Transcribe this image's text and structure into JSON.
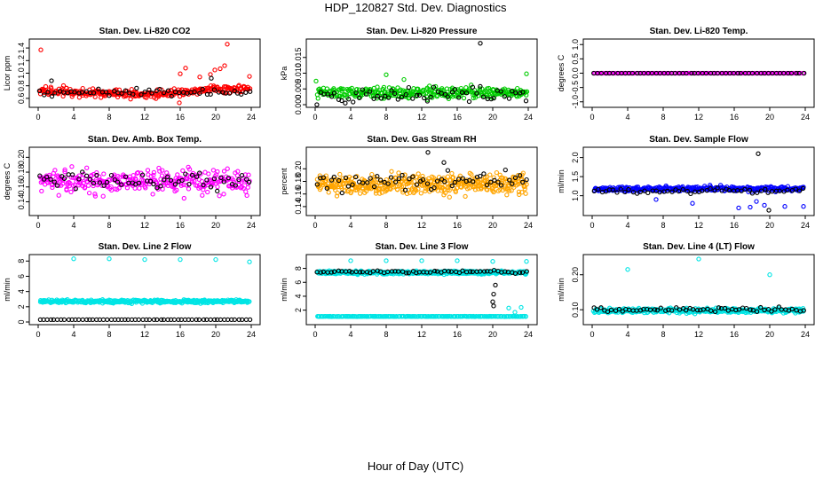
{
  "page": {
    "title": "HDP_120827  Std. Dev. Diagnostics",
    "xlabel": "Hour of Day (UTC)"
  },
  "colors": {
    "black": "#000000",
    "red": "#ff0000",
    "green": "#00cc00",
    "magenta": "#ff00ff",
    "orange": "#ffa500",
    "blue": "#0000ff",
    "cyan": "#00e5e5"
  },
  "chart_data": [
    {
      "id": "co2",
      "type": "scatter",
      "title": "Stan. Dev. Li-820 CO2",
      "ylabel": "Licor ppm",
      "xlim": [
        0,
        24
      ],
      "xticks": [
        "0",
        "4",
        "8",
        "12",
        "16",
        "20",
        "24"
      ],
      "ylim": [
        0.5,
        1.5
      ],
      "yticks": [
        0.6,
        0.8,
        1.0,
        1.2,
        1.4
      ],
      "ytick_labels": [
        "0.6",
        "0.8",
        "1.0",
        "1.2",
        "1.4"
      ],
      "series": [
        {
          "name": "main",
          "color": "#ff0000",
          "n": 300,
          "center": 0.68,
          "spread": 0.07,
          "trend": [
            [
              0,
              0.72
            ],
            [
              6,
              0.69
            ],
            [
              12,
              0.66
            ],
            [
              16,
              0.7
            ],
            [
              20,
              0.76
            ],
            [
              24,
              0.74
            ]
          ],
          "outliers": [
            [
              0.3,
              1.37
            ],
            [
              21.3,
              1.46
            ],
            [
              21,
              1.12
            ],
            [
              20.5,
              1.07
            ],
            [
              16.6,
              1.08
            ],
            [
              19.4,
              0.98
            ],
            [
              18.2,
              0.94
            ],
            [
              23.8,
              0.95
            ],
            [
              16,
              0.99
            ],
            [
              15.9,
              0.53
            ],
            [
              19.9,
              1.05
            ]
          ]
        },
        {
          "name": "ref",
          "color": "#000000",
          "n": 55,
          "center": 0.7,
          "spread": 0.06,
          "outliers": [
            [
              1.5,
              0.88
            ],
            [
              19.5,
              0.92
            ]
          ]
        }
      ]
    },
    {
      "id": "pressure",
      "type": "scatter",
      "title": "Stan. Dev. Li-820 Pressure",
      "ylabel": "kPa",
      "xlim": [
        0,
        24
      ],
      "xticks": [
        "0",
        "4",
        "8",
        "12",
        "16",
        "20",
        "24"
      ],
      "ylim": [
        0,
        0.02
      ],
      "yticks": [
        0,
        0.005,
        0.01,
        0.015
      ],
      "ytick_labels": [
        "0.000",
        "0.005",
        "0.010",
        "0.015"
      ],
      "series": [
        {
          "name": "main",
          "color": "#00cc00",
          "n": 320,
          "center": 0.0038,
          "spread": 0.0018,
          "outliers": [
            [
              8,
              0.0095
            ],
            [
              23.8,
              0.0098
            ],
            [
              0.1,
              0.0075
            ],
            [
              10,
              0.008
            ]
          ]
        },
        {
          "name": "ref",
          "color": "#000000",
          "n": 60,
          "center": 0.003,
          "spread": 0.0025,
          "outliers": [
            [
              18.6,
              0.0195
            ]
          ]
        }
      ]
    },
    {
      "id": "temp",
      "type": "scatter",
      "title": "Stan. Dev. Li-820 Temp.",
      "ylabel": "degrees C",
      "xlim": [
        0,
        24
      ],
      "xticks": [
        "0",
        "4",
        "8",
        "12",
        "16",
        "20",
        "24"
      ],
      "ylim": [
        -1.1,
        1.1
      ],
      "yticks": [
        -1,
        -0.5,
        0,
        0.5,
        1
      ],
      "ytick_labels": [
        "-1.0",
        "-0.5",
        "0.0",
        "0.5",
        "1.0"
      ],
      "series": [
        {
          "name": "main",
          "color": "#ff00ff",
          "n": 170,
          "center": 0.0,
          "spread": 0.0
        },
        {
          "name": "ref",
          "color": "#000000",
          "n": 55,
          "center": 0.0,
          "spread": 0.0
        }
      ]
    },
    {
      "id": "ambbox",
      "type": "scatter",
      "title": "Stan. Dev. Amb. Box Temp.",
      "ylabel": "degrees C",
      "xlim": [
        0,
        24
      ],
      "xticks": [
        "0",
        "4",
        "8",
        "12",
        "16",
        "20",
        "24"
      ],
      "ylim": [
        0.125,
        0.21
      ],
      "yticks": [
        0.14,
        0.16,
        0.18,
        0.2
      ],
      "ytick_labels": [
        "0.14",
        "0.16",
        "0.18",
        "0.20"
      ],
      "series": [
        {
          "name": "main",
          "color": "#ff00ff",
          "n": 320,
          "center": 0.167,
          "spread": 0.016
        },
        {
          "name": "ref",
          "color": "#000000",
          "n": 60,
          "center": 0.168,
          "spread": 0.013
        }
      ]
    },
    {
      "id": "rh",
      "type": "scatter",
      "title": "Stan. Dev. Gas Stream RH",
      "ylabel": "percent",
      "xlim": [
        0,
        24
      ],
      "xticks": [
        "0",
        "4",
        "8",
        "12",
        "16",
        "20",
        "24"
      ],
      "ylim": [
        0.13,
        0.23
      ],
      "yticks": [
        0.14,
        0.16,
        0.18,
        0.2
      ],
      "ytick_labels": [
        "0.14",
        "0.16",
        "0.18",
        "0.20"
      ],
      "series": [
        {
          "name": "main",
          "color": "#ffa500",
          "n": 420,
          "center": 0.176,
          "spread": 0.017
        },
        {
          "name": "ref",
          "color": "#000000",
          "n": 60,
          "center": 0.18,
          "spread": 0.015,
          "outliers": [
            [
              12.7,
              0.226
            ],
            [
              14.5,
              0.21
            ]
          ]
        }
      ]
    },
    {
      "id": "sampleflow",
      "type": "scatter",
      "title": "Stan. Dev. Sample Flow",
      "ylabel": "ml/min",
      "xlim": [
        0,
        24
      ],
      "xticks": [
        "0",
        "4",
        "8",
        "12",
        "16",
        "20",
        "24"
      ],
      "ylim": [
        0.55,
        2.2
      ],
      "yticks": [
        1.0,
        1.5,
        2.0
      ],
      "ytick_labels": [
        "1.0",
        "1.5",
        "2.0"
      ],
      "series": [
        {
          "name": "main",
          "color": "#0000ff",
          "n": 340,
          "center": 1.18,
          "spread": 0.07,
          "outliers": [
            [
              16.5,
              0.68
            ],
            [
              17.8,
              0.7
            ],
            [
              19.4,
              0.75
            ],
            [
              21.7,
              0.72
            ],
            [
              23.8,
              0.72
            ],
            [
              11.3,
              0.8
            ],
            [
              7.2,
              0.9
            ],
            [
              18.5,
              0.85
            ]
          ]
        },
        {
          "name": "ref",
          "color": "#000000",
          "n": 55,
          "center": 1.13,
          "spread": 0.08,
          "outliers": [
            [
              18.7,
              2.1
            ],
            [
              19.9,
              0.62
            ]
          ]
        }
      ]
    },
    {
      "id": "line2",
      "type": "scatter",
      "title": "Stan. Dev. Line 2 Flow",
      "ylabel": "ml/min",
      "xlim": [
        0,
        24
      ],
      "xticks": [
        "0",
        "4",
        "8",
        "12",
        "16",
        "20",
        "24"
      ],
      "ylim": [
        0,
        8.5
      ],
      "yticks": [
        0,
        2,
        4,
        6,
        8
      ],
      "ytick_labels": [
        "0",
        "2",
        "4",
        "6",
        "8"
      ],
      "series": [
        {
          "name": "main",
          "color": "#00e5e5",
          "n": 400,
          "center": 2.7,
          "spread": 0.22,
          "outliers": [
            [
              4,
              8.3
            ],
            [
              8,
              8.3
            ],
            [
              12,
              8.2
            ],
            [
              16,
              8.2
            ],
            [
              20,
              8.2
            ],
            [
              23.8,
              7.9
            ]
          ]
        },
        {
          "name": "ref",
          "color": "#000000",
          "n": 60,
          "center": 0.3,
          "spread": 0.0
        }
      ]
    },
    {
      "id": "line3",
      "type": "scatter",
      "title": "Stan. Dev. Line 3 Flow",
      "ylabel": "ml/min",
      "xlim": [
        0,
        24
      ],
      "xticks": [
        "0",
        "4",
        "8",
        "12",
        "16",
        "20",
        "24"
      ],
      "ylim": [
        0.3,
        9.6
      ],
      "yticks": [
        2,
        4,
        6,
        8
      ],
      "ytick_labels": [
        "2",
        "4",
        "6",
        "8"
      ],
      "series": [
        {
          "name": "main",
          "color": "#00e5e5",
          "n": 420,
          "center": 7.4,
          "spread": 0.25,
          "low": 1.1,
          "outliers": [
            [
              4,
              9.1
            ],
            [
              8,
              9.1
            ],
            [
              12,
              9.1
            ],
            [
              16,
              9.1
            ],
            [
              20,
              9.0
            ],
            [
              23.8,
              9.0
            ],
            [
              21.8,
              2.3
            ],
            [
              22.5,
              1.7
            ],
            [
              23.2,
              2.4
            ]
          ]
        },
        {
          "name": "ref",
          "color": "#000000",
          "n": 60,
          "center": 7.5,
          "spread": 0.2,
          "outliers": [
            [
              20,
              3.2
            ],
            [
              20.1,
              4.3
            ],
            [
              20.3,
              5.6
            ],
            [
              20.1,
              2.6
            ]
          ]
        }
      ]
    },
    {
      "id": "line4",
      "type": "scatter",
      "title": "Stan. Dev. Line 4 (LT) Flow",
      "ylabel": "ml/min",
      "xlim": [
        0,
        24
      ],
      "xticks": [
        "0",
        "4",
        "8",
        "12",
        "16",
        "20",
        "24"
      ],
      "ylim": [
        0.065,
        0.25
      ],
      "yticks": [
        0.1,
        0.2
      ],
      "ytick_labels": [
        "0.10",
        "0.20"
      ],
      "series": [
        {
          "name": "main",
          "color": "#00e5e5",
          "n": 400,
          "center": 0.098,
          "spread": 0.007,
          "outliers": [
            [
              4,
              0.215
            ],
            [
              12,
              0.245
            ],
            [
              20,
              0.2
            ]
          ]
        },
        {
          "name": "ref",
          "color": "#000000",
          "n": 60,
          "center": 0.1,
          "spread": 0.006
        }
      ]
    }
  ]
}
